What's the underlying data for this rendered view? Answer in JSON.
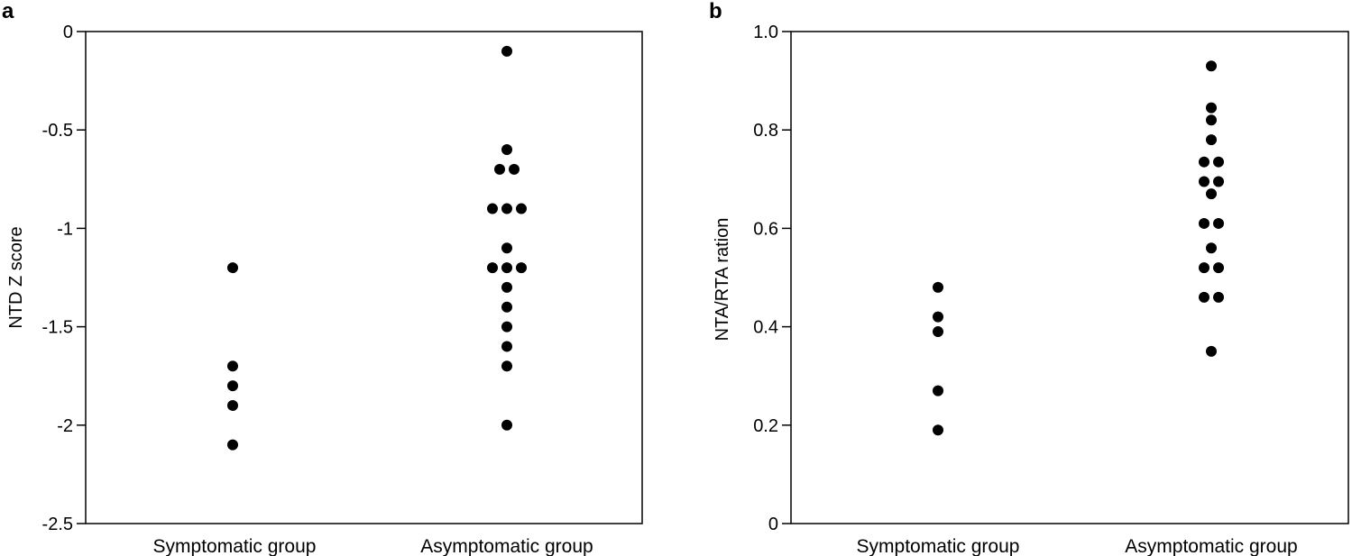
{
  "chart_data": [
    {
      "panel": "a",
      "type": "scatter",
      "categories": [
        "Symptomatic group",
        "Asymptomatic group"
      ],
      "ylabel": "NTD Z score",
      "xlabel": "",
      "ylim": [
        -2.5,
        0
      ],
      "yticks": [
        0,
        -0.5,
        -1,
        -1.5,
        -2,
        -2.5
      ],
      "ytick_labels": [
        "0",
        "-0.5",
        "-1",
        "-1.5",
        "-2",
        "-2.5"
      ],
      "grid": false,
      "groups": [
        {
          "category": "Symptomatic group",
          "values": [
            -1.2,
            -1.7,
            -1.8,
            -1.9,
            -2.1
          ]
        },
        {
          "category": "Asymptomatic group",
          "values": [
            -0.1,
            -0.6,
            -0.7,
            -0.7,
            -0.9,
            -0.9,
            -0.9,
            -1.1,
            -1.2,
            -1.2,
            -1.2,
            -1.3,
            -1.4,
            -1.5,
            -1.6,
            -1.7,
            -2.0
          ]
        }
      ]
    },
    {
      "panel": "b",
      "type": "scatter",
      "categories": [
        "Symptomatic group",
        "Asymptomatic group"
      ],
      "ylabel": "NTA/RTA ration",
      "xlabel": "",
      "ylim": [
        0,
        1.0
      ],
      "yticks": [
        1.0,
        0.8,
        0.6,
        0.4,
        0.2,
        0
      ],
      "ytick_labels": [
        "1.0",
        "0.8",
        "0.6",
        "0.4",
        "0.2",
        "0"
      ],
      "grid": false,
      "groups": [
        {
          "category": "Symptomatic group",
          "values": [
            0.48,
            0.42,
            0.39,
            0.27,
            0.19
          ]
        },
        {
          "category": "Asymptomatic group",
          "values": [
            0.93,
            0.845,
            0.82,
            0.78,
            0.735,
            0.735,
            0.695,
            0.695,
            0.67,
            0.61,
            0.61,
            0.56,
            0.52,
            0.52,
            0.46,
            0.46,
            0.35
          ]
        }
      ]
    }
  ]
}
